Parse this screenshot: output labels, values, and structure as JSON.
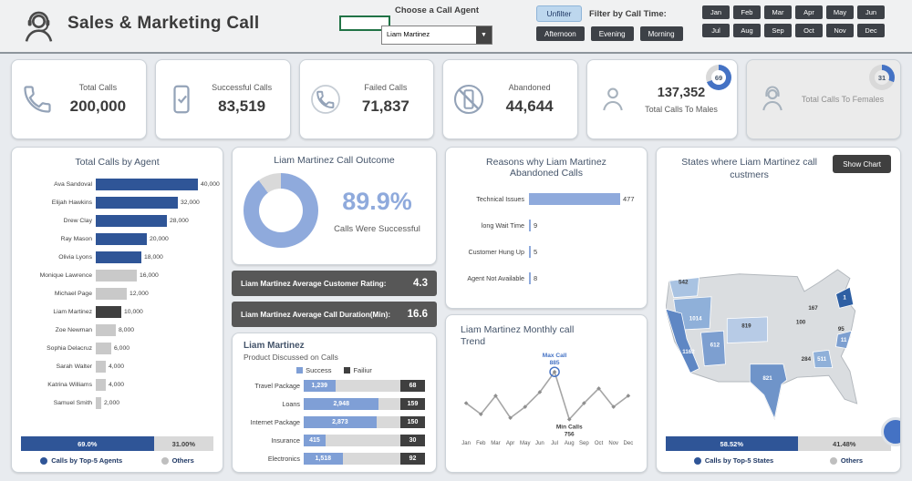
{
  "theme": {
    "accent_blue": "#2f5597",
    "light_blue": "#8faadc",
    "dark_gray": "#3f3f3f",
    "gauge_blue": "#4472c4"
  },
  "header": {
    "title": "Sales & Marketing Call",
    "agent_label": "Choose a Call Agent",
    "agent_selected": "Liam Martinez",
    "unfilter": "Unfilter",
    "time_label": "Filter by Call Time:",
    "times": [
      "Afternoon",
      "Evening",
      "Morning"
    ],
    "months": [
      "Jan",
      "Feb",
      "Mar",
      "Apr",
      "May",
      "Jun",
      "Jul",
      "Aug",
      "Sep",
      "Oct",
      "Nov",
      "Dec"
    ]
  },
  "kpis": [
    {
      "icon": "phone-icon",
      "label": "Total Calls",
      "value": "200,000"
    },
    {
      "icon": "phone-success-icon",
      "label": "Successful Calls",
      "value": "83,519"
    },
    {
      "icon": "phone-failed-icon",
      "label": "Failed Calls",
      "value": "71,837"
    },
    {
      "icon": "phone-blocked-icon",
      "label": "Abandoned",
      "value": "44,644"
    },
    {
      "icon": "male-icon",
      "label": "Total Calls To Males",
      "value": "137,352",
      "gauge": 69,
      "person": true
    },
    {
      "icon": "female-icon",
      "label": "Total Calls To Females",
      "value": "",
      "gauge": 31,
      "person": true,
      "muted": true
    }
  ],
  "metrics": [
    {
      "label": "Liam Martinez Average Customer Rating:",
      "value": "4.3"
    },
    {
      "label": "Liam Martinez Average Call Duration(Min):",
      "value": "16.6"
    }
  ],
  "chart_data": [
    {
      "type": "bar",
      "orientation": "horizontal",
      "title": "Total Calls by Agent",
      "categories": [
        "Ava Sandoval",
        "Elijah Hawkins",
        "Drew Clay",
        "Ray Mason",
        "Olivia Lyons",
        "Monique Lawrence",
        "Michael Page",
        "Liam Martinez",
        "Zoe Newman",
        "Sophia Delacruz",
        "Sarah Walter",
        "Katrina Williams",
        "Samuel Smith"
      ],
      "values": [
        40000,
        32000,
        28000,
        20000,
        18000,
        16000,
        12000,
        10000,
        8000,
        6000,
        4000,
        4000,
        2000
      ],
      "labels": [
        "40,000",
        "32,000",
        "28,000",
        "20,000",
        "18,000",
        "16,000",
        "12,000",
        "10,000",
        "8,000",
        "6,000",
        "4,000",
        "4,000",
        "2,000"
      ],
      "top5_count": 5,
      "highlight_index": 7,
      "top5_color": "#2f5597",
      "highlight_color": "#3f3f3f",
      "other_color": "#c9c9c9",
      "footer": {
        "segments": [
          {
            "label": "69.0%",
            "pct": 69,
            "color": "#2f5597",
            "text": "#ffffff"
          },
          {
            "label": "31.00%",
            "pct": 31,
            "color": "#d9d9d9",
            "text": "#3f3f3f"
          }
        ]
      },
      "legend": [
        {
          "label": "Calls by Top-5 Agents",
          "color": "#2f5597"
        },
        {
          "label": "Others",
          "color": "#bfbfbf"
        }
      ]
    },
    {
      "type": "pie",
      "title": "Liam Martinez Call Outcome",
      "center_label": "89.9%",
      "caption": "Calls Were Successful",
      "values": [
        89.9,
        10.1
      ],
      "colors": [
        "#8faadc",
        "#d9d9d9"
      ]
    },
    {
      "type": "bar",
      "stacked": true,
      "title": "Liam Martinez",
      "subtitle": "Product Discussed on Calls",
      "categories": [
        "Travel Package",
        "Loans",
        "Internet Package",
        "Insurance",
        "Electronics"
      ],
      "series": [
        {
          "name": "Success",
          "color": "#7f9fd6",
          "values": [
            1239,
            2948,
            2873,
            415,
            1518
          ],
          "labels": [
            "1,239",
            "2,948",
            "2,873",
            "415",
            "1,518"
          ]
        },
        {
          "name": "Failiur",
          "color": "#3f3f3f",
          "values": [
            68,
            159,
            150,
            30,
            92
          ],
          "labels": [
            "68",
            "159",
            "150",
            "30",
            "92"
          ]
        }
      ]
    },
    {
      "type": "bar",
      "orientation": "horizontal",
      "title": "Reasons why Liam Martinez Abandoned Calls",
      "categories": [
        "Technical Issues",
        "long Wait Time",
        "Customer Hung Up",
        "Agent Not Available"
      ],
      "values": [
        477,
        9,
        5,
        8
      ],
      "labels": [
        "477",
        "9",
        "5",
        "8"
      ],
      "bar_color": "#8faadc"
    },
    {
      "type": "line",
      "title": "Liam Martinez Monthly call Trend",
      "x": [
        "Jan",
        "Feb",
        "Mar",
        "Apr",
        "May",
        "Jun",
        "Jul",
        "Aug",
        "Sep",
        "Oct",
        "Nov",
        "Dec"
      ],
      "values": [
        800,
        770,
        820,
        760,
        790,
        830,
        885,
        756,
        800,
        840,
        790,
        820
      ],
      "max_annotation": {
        "label": "Max Call",
        "value": "885",
        "index": 6
      },
      "min_annotation": {
        "label": "Min Calls",
        "value": "756",
        "index": 7
      }
    },
    {
      "type": "map",
      "title": "States where Liam Martinez call custmers",
      "button_label": "Show Chart",
      "state_values": [
        "542",
        "1014",
        "1162",
        "612",
        "819",
        "821",
        "100",
        "167",
        "95",
        "1",
        "11",
        "284",
        "511"
      ],
      "footer": {
        "segments": [
          {
            "label": "58.52%",
            "pct": 58.52,
            "color": "#2f5597",
            "text": "#ffffff"
          },
          {
            "label": "41.48%",
            "pct": 41.48,
            "color": "#d9d9d9",
            "text": "#3f3f3f"
          }
        ]
      },
      "legend": [
        {
          "label": "Calls by Top-5 States",
          "color": "#2f5597"
        },
        {
          "label": "Others",
          "color": "#bfbfbf"
        }
      ]
    }
  ]
}
